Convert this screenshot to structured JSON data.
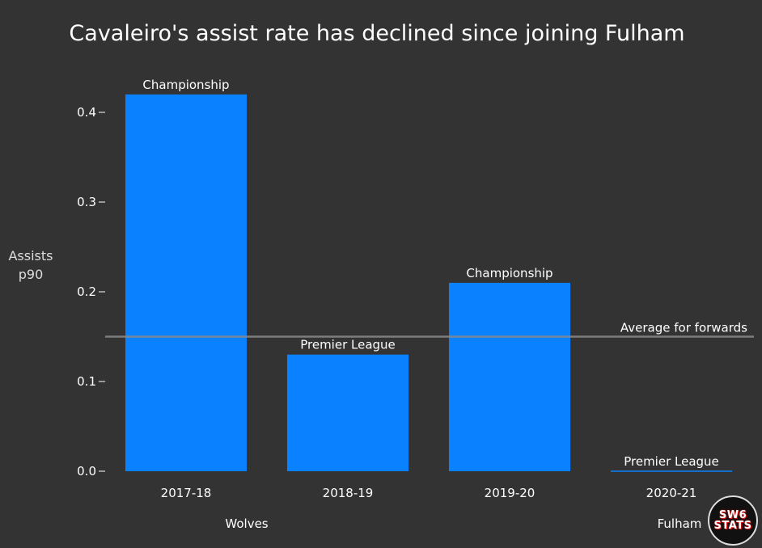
{
  "chart_data": {
    "type": "bar",
    "title": "Cavaleiro's assist rate has declined since joining Fulham",
    "ylabel": [
      "Assists",
      "p90"
    ],
    "xlabel": "",
    "categories": [
      "2017-18",
      "2018-19",
      "2019-20",
      "2020-21"
    ],
    "values": [
      0.42,
      0.13,
      0.21,
      0.0
    ],
    "bar_labels": [
      "Championship",
      "Premier League",
      "Championship",
      "Premier League"
    ],
    "groups": [
      {
        "label": "Wolves",
        "categories": [
          "2017-18",
          "2018-19"
        ]
      },
      {
        "label": "Fulham",
        "categories": [
          "2019-20",
          "2020-21"
        ]
      }
    ],
    "yticks": [
      0.0,
      0.1,
      0.2,
      0.3,
      0.4
    ],
    "ytick_labels": [
      "0.0",
      "0.1",
      "0.2",
      "0.3",
      "0.4"
    ],
    "ylim": [
      0,
      0.44
    ],
    "reference_line": {
      "label": "Average for forwards",
      "value": 0.15
    },
    "grid": false,
    "colors": {
      "background": "#333333",
      "bar": "#0a82ff",
      "reference_line": "#8a8a8a",
      "text": "#ffffff"
    }
  },
  "logo": {
    "line1": "SW6",
    "line2": "STATS"
  }
}
